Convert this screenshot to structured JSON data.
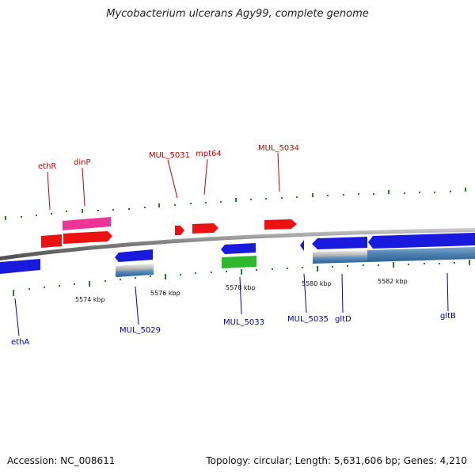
{
  "title": "Mycobacterium ulcerans Agy99, complete genome",
  "footer": {
    "accession": "Accession: NC_008611",
    "summary": "Topology: circular; Length: 5,631,606 bp; Genes: 4,210"
  },
  "colors": {
    "forward_cds": "#ee1111",
    "forward_rna": "#ee3399",
    "reverse_cds": "#1a1adf",
    "reverse_other": "#2eb82e",
    "backbone": "#808080",
    "tick": "#2a7a2a",
    "forward_label": "#cc0000",
    "reverse_label": "#0000aa"
  },
  "scale_labels": [
    "5574 kbp",
    "5576 kbp",
    "5578 kbp",
    "5580 kbp",
    "5582 kbp"
  ],
  "forward_genes": [
    "ethR",
    "dinP",
    "MUL_5031",
    "mpt64",
    "MUL_5034"
  ],
  "reverse_genes": [
    "ethA",
    "MUL_5029",
    "MUL_5033",
    "MUL_5035",
    "gltD",
    "gltB"
  ]
}
